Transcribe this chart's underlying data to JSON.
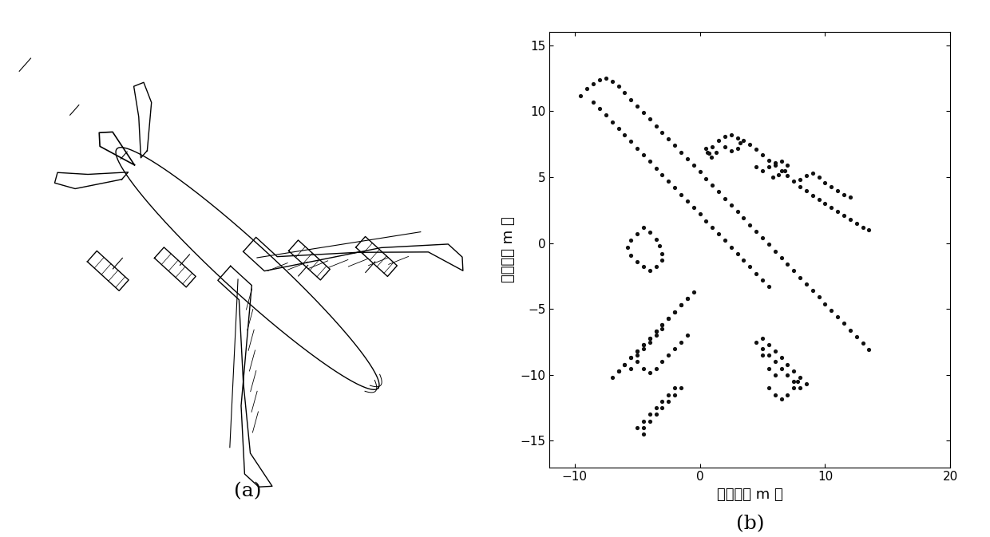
{
  "xlabel": "方位向（ m ）",
  "ylabel": "距离向（ m ）",
  "xlim": [
    -12,
    20
  ],
  "ylim": [
    -17,
    16
  ],
  "xticks": [
    -10,
    0,
    10,
    20
  ],
  "yticks": [
    -15,
    -10,
    -5,
    0,
    5,
    10,
    15
  ],
  "label_a": "(a)",
  "label_b": "(b)",
  "dot_color": "#111111",
  "dot_size": 14,
  "scatter_points": [
    [
      -9.5,
      11.2
    ],
    [
      -9.0,
      11.7
    ],
    [
      -8.5,
      12.1
    ],
    [
      -8.0,
      12.4
    ],
    [
      -7.5,
      12.5
    ],
    [
      -7.0,
      12.3
    ],
    [
      -6.5,
      11.9
    ],
    [
      -6.0,
      11.4
    ],
    [
      -5.5,
      10.9
    ],
    [
      -5.0,
      10.4
    ],
    [
      -4.5,
      9.9
    ],
    [
      -4.0,
      9.4
    ],
    [
      -3.5,
      8.9
    ],
    [
      -3.0,
      8.4
    ],
    [
      -2.5,
      7.9
    ],
    [
      -2.0,
      7.4
    ],
    [
      -1.5,
      6.9
    ],
    [
      -1.0,
      6.4
    ],
    [
      -0.5,
      5.9
    ],
    [
      0.0,
      5.4
    ],
    [
      0.5,
      4.9
    ],
    [
      1.0,
      4.4
    ],
    [
      1.5,
      3.9
    ],
    [
      2.0,
      3.4
    ],
    [
      2.5,
      2.9
    ],
    [
      3.0,
      2.4
    ],
    [
      3.5,
      1.9
    ],
    [
      4.0,
      1.4
    ],
    [
      4.5,
      0.9
    ],
    [
      5.0,
      0.4
    ],
    [
      5.5,
      -0.1
    ],
    [
      6.0,
      -0.6
    ],
    [
      6.5,
      -1.1
    ],
    [
      7.0,
      -1.6
    ],
    [
      7.5,
      -2.1
    ],
    [
      8.0,
      -2.6
    ],
    [
      8.5,
      -3.1
    ],
    [
      9.0,
      -3.6
    ],
    [
      9.5,
      -4.1
    ],
    [
      10.0,
      -4.6
    ],
    [
      10.5,
      -5.1
    ],
    [
      11.0,
      -5.6
    ],
    [
      11.5,
      -6.1
    ],
    [
      12.0,
      -6.6
    ],
    [
      12.5,
      -7.1
    ],
    [
      13.0,
      -7.6
    ],
    [
      13.5,
      -8.1
    ],
    [
      -8.5,
      10.7
    ],
    [
      -8.0,
      10.2
    ],
    [
      -7.5,
      9.7
    ],
    [
      -7.0,
      9.2
    ],
    [
      -6.5,
      8.7
    ],
    [
      -6.0,
      8.2
    ],
    [
      -5.5,
      7.7
    ],
    [
      -5.0,
      7.2
    ],
    [
      -4.5,
      6.7
    ],
    [
      -4.0,
      6.2
    ],
    [
      -3.5,
      5.7
    ],
    [
      -3.0,
      5.2
    ],
    [
      -2.5,
      4.7
    ],
    [
      -2.0,
      4.2
    ],
    [
      -1.5,
      3.7
    ],
    [
      -1.0,
      3.2
    ],
    [
      -0.5,
      2.7
    ],
    [
      0.0,
      2.2
    ],
    [
      0.5,
      1.7
    ],
    [
      1.0,
      1.2
    ],
    [
      1.5,
      0.7
    ],
    [
      2.0,
      0.2
    ],
    [
      2.5,
      -0.3
    ],
    [
      3.0,
      -0.8
    ],
    [
      3.5,
      -1.3
    ],
    [
      4.0,
      -1.8
    ],
    [
      4.5,
      -2.3
    ],
    [
      5.0,
      -2.8
    ],
    [
      5.5,
      -3.3
    ],
    [
      -4.5,
      1.2
    ],
    [
      -5.0,
      0.7
    ],
    [
      -5.5,
      0.2
    ],
    [
      -5.8,
      -0.3
    ],
    [
      -5.5,
      -0.9
    ],
    [
      -5.0,
      -1.4
    ],
    [
      -4.5,
      -1.8
    ],
    [
      -4.0,
      -2.1
    ],
    [
      -3.5,
      -1.8
    ],
    [
      -3.0,
      -1.3
    ],
    [
      -3.0,
      -0.8
    ],
    [
      -3.2,
      -0.2
    ],
    [
      -3.5,
      0.3
    ],
    [
      -4.0,
      0.8
    ],
    [
      0.5,
      7.2
    ],
    [
      0.7,
      6.8
    ],
    [
      1.0,
      7.3
    ],
    [
      1.3,
      6.9
    ],
    [
      0.9,
      6.5
    ],
    [
      0.6,
      6.9
    ],
    [
      1.5,
      7.8
    ],
    [
      2.0,
      8.1
    ],
    [
      2.5,
      8.2
    ],
    [
      3.0,
      8.0
    ],
    [
      3.2,
      7.6
    ],
    [
      3.0,
      7.2
    ],
    [
      2.5,
      7.0
    ],
    [
      2.0,
      7.3
    ],
    [
      3.5,
      7.8
    ],
    [
      4.0,
      7.5
    ],
    [
      4.5,
      7.1
    ],
    [
      5.0,
      6.7
    ],
    [
      5.5,
      6.3
    ],
    [
      6.0,
      5.9
    ],
    [
      6.5,
      5.5
    ],
    [
      7.0,
      5.1
    ],
    [
      7.5,
      4.7
    ],
    [
      8.0,
      4.3
    ],
    [
      8.5,
      4.0
    ],
    [
      9.0,
      3.6
    ],
    [
      9.5,
      3.3
    ],
    [
      10.0,
      3.0
    ],
    [
      10.5,
      2.7
    ],
    [
      11.0,
      2.4
    ],
    [
      11.5,
      2.1
    ],
    [
      12.0,
      1.8
    ],
    [
      12.5,
      1.5
    ],
    [
      13.0,
      1.2
    ],
    [
      13.5,
      1.0
    ],
    [
      4.5,
      5.8
    ],
    [
      5.0,
      5.5
    ],
    [
      5.5,
      5.8
    ],
    [
      6.0,
      6.1
    ],
    [
      6.5,
      6.2
    ],
    [
      7.0,
      5.9
    ],
    [
      6.8,
      5.5
    ],
    [
      6.3,
      5.2
    ],
    [
      5.8,
      5.0
    ],
    [
      8.0,
      4.8
    ],
    [
      8.5,
      5.1
    ],
    [
      9.0,
      5.3
    ],
    [
      9.5,
      5.0
    ],
    [
      10.0,
      4.6
    ],
    [
      10.5,
      4.3
    ],
    [
      11.0,
      4.0
    ],
    [
      11.5,
      3.7
    ],
    [
      12.0,
      3.5
    ],
    [
      -1.0,
      -4.2
    ],
    [
      -1.5,
      -4.7
    ],
    [
      -2.0,
      -5.2
    ],
    [
      -2.5,
      -5.7
    ],
    [
      -3.0,
      -6.2
    ],
    [
      -3.5,
      -6.7
    ],
    [
      -4.0,
      -7.2
    ],
    [
      -4.5,
      -7.7
    ],
    [
      -5.0,
      -8.2
    ],
    [
      -5.5,
      -8.7
    ],
    [
      -6.0,
      -9.2
    ],
    [
      -6.5,
      -9.7
    ],
    [
      -7.0,
      -10.2
    ],
    [
      -0.5,
      -3.7
    ],
    [
      -1.0,
      -4.2
    ],
    [
      -1.5,
      -4.7
    ],
    [
      -2.0,
      -5.2
    ],
    [
      -2.5,
      -5.7
    ],
    [
      -3.0,
      -6.2
    ],
    [
      -3.5,
      -6.7
    ],
    [
      -4.0,
      -7.2
    ],
    [
      -4.5,
      -7.7
    ],
    [
      -5.0,
      -8.2
    ],
    [
      -5.5,
      -8.7
    ],
    [
      -6.0,
      -9.2
    ],
    [
      -6.5,
      -9.7
    ],
    [
      -4.5,
      -9.5
    ],
    [
      -4.0,
      -9.8
    ],
    [
      -3.5,
      -9.5
    ],
    [
      -3.0,
      -9.0
    ],
    [
      -2.5,
      -8.5
    ],
    [
      -2.0,
      -8.0
    ],
    [
      -1.5,
      -7.5
    ],
    [
      -1.0,
      -7.0
    ],
    [
      -5.0,
      -9.0
    ],
    [
      -5.5,
      -9.5
    ],
    [
      -5.0,
      -8.5
    ],
    [
      -4.5,
      -8.0
    ],
    [
      -4.0,
      -7.5
    ],
    [
      -3.5,
      -7.0
    ],
    [
      -3.0,
      -6.5
    ],
    [
      5.0,
      -7.2
    ],
    [
      5.5,
      -7.7
    ],
    [
      6.0,
      -8.2
    ],
    [
      6.5,
      -8.7
    ],
    [
      7.0,
      -9.2
    ],
    [
      7.5,
      -9.7
    ],
    [
      8.0,
      -10.2
    ],
    [
      8.5,
      -10.7
    ],
    [
      5.0,
      -8.0
    ],
    [
      5.5,
      -8.5
    ],
    [
      6.0,
      -9.0
    ],
    [
      6.5,
      -9.5
    ],
    [
      7.0,
      -10.0
    ],
    [
      7.5,
      -10.5
    ],
    [
      8.0,
      -11.0
    ],
    [
      4.5,
      -7.5
    ],
    [
      5.0,
      -8.5
    ],
    [
      5.5,
      -9.5
    ],
    [
      6.0,
      -10.0
    ],
    [
      5.5,
      -11.0
    ],
    [
      6.0,
      -11.5
    ],
    [
      6.5,
      -11.8
    ],
    [
      7.0,
      -11.5
    ],
    [
      7.5,
      -11.0
    ],
    [
      7.8,
      -10.5
    ],
    [
      -4.5,
      -14.5
    ],
    [
      -4.5,
      -14.0
    ],
    [
      -4.0,
      -13.5
    ],
    [
      -3.5,
      -13.0
    ],
    [
      -3.0,
      -12.5
    ],
    [
      -2.5,
      -12.0
    ],
    [
      -2.0,
      -11.5
    ],
    [
      -1.5,
      -11.0
    ],
    [
      -5.0,
      -14.0
    ],
    [
      -4.5,
      -13.5
    ],
    [
      -4.0,
      -13.0
    ],
    [
      -3.5,
      -12.5
    ],
    [
      -3.0,
      -12.0
    ],
    [
      -2.5,
      -11.5
    ],
    [
      -2.0,
      -11.0
    ]
  ]
}
